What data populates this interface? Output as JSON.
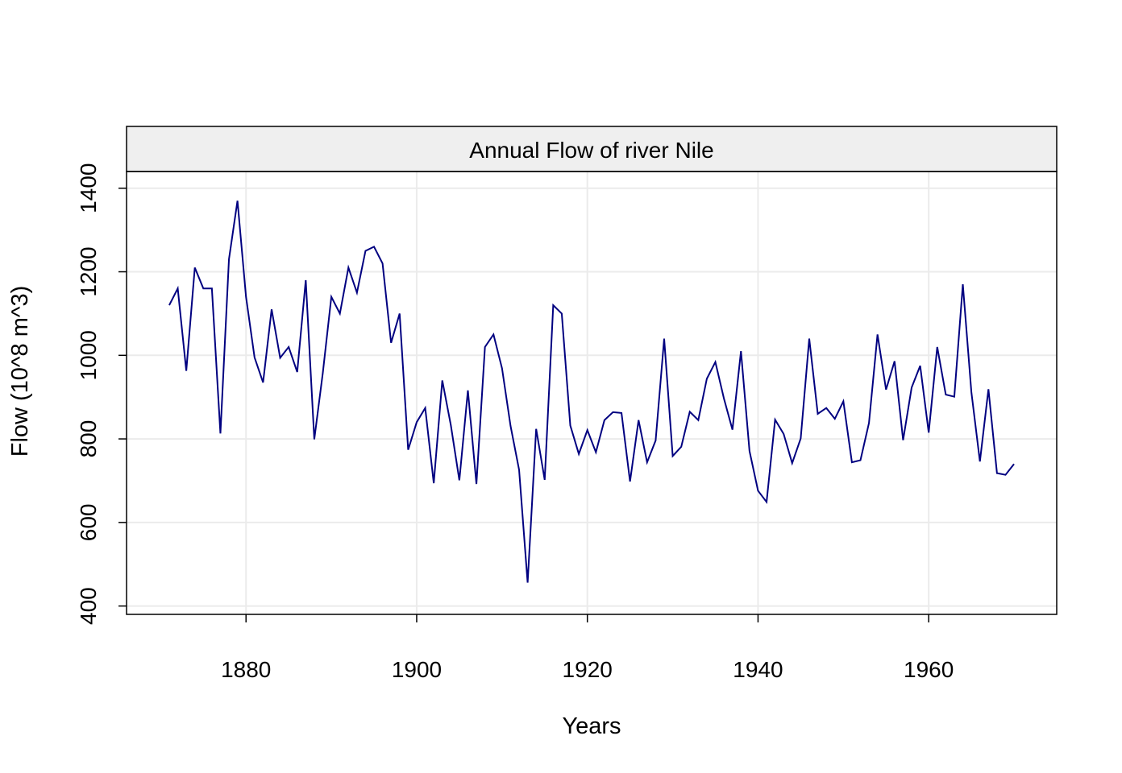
{
  "chart_data": {
    "type": "line",
    "title": "Annual Flow of river Nile",
    "xlabel": "Years",
    "ylabel": "Flow (10^8 m^3)",
    "xlim": [
      1866,
      1975
    ],
    "ylim": [
      380,
      1440
    ],
    "x_ticks": [
      1880,
      1900,
      1920,
      1940,
      1960
    ],
    "y_ticks": [
      400,
      600,
      800,
      1000,
      1200,
      1400
    ],
    "grid": true,
    "line_color": "#000080",
    "strip_color": "#efefef",
    "grid_color": "#ebebeb",
    "series": [
      {
        "x_start": 1871,
        "x_step": 1,
        "values": [
          1120,
          1160,
          963,
          1210,
          1160,
          1160,
          813,
          1230,
          1370,
          1140,
          995,
          935,
          1110,
          994,
          1020,
          960,
          1180,
          799,
          958,
          1140,
          1100,
          1210,
          1150,
          1250,
          1260,
          1220,
          1030,
          1100,
          774,
          840,
          874,
          694,
          940,
          833,
          701,
          916,
          692,
          1020,
          1050,
          969,
          831,
          726,
          456,
          824,
          702,
          1120,
          1100,
          832,
          764,
          821,
          768,
          845,
          864,
          862,
          698,
          845,
          744,
          796,
          1040,
          759,
          781,
          865,
          845,
          944,
          984,
          897,
          822,
          1010,
          771,
          676,
          649,
          846,
          812,
          742,
          801,
          1040,
          860,
          874,
          848,
          890,
          744,
          749,
          838,
          1050,
          918,
          986,
          797,
          923,
          975,
          815,
          1020,
          906,
          901,
          1170,
          912,
          746,
          919,
          718,
          714,
          740
        ]
      }
    ]
  }
}
